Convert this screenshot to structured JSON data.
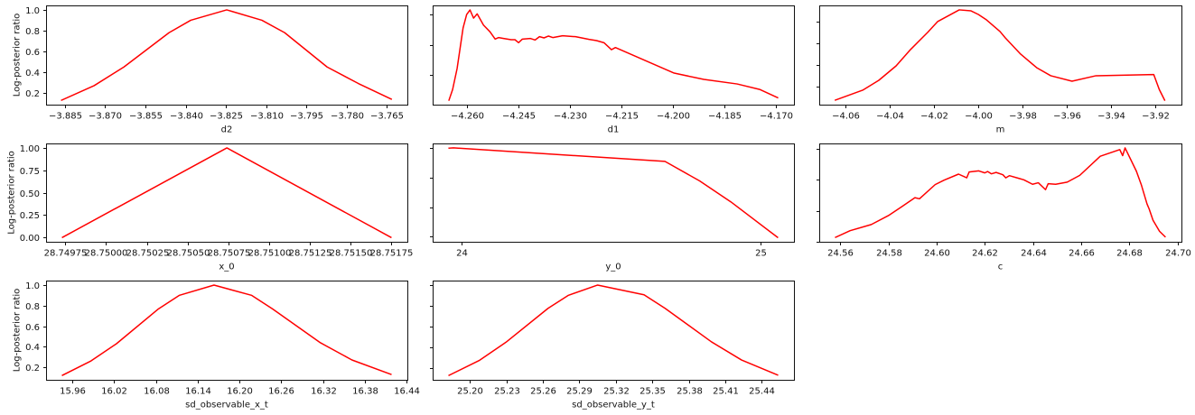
{
  "figure": {
    "grid": {
      "rows": 3,
      "cols": 3
    },
    "empty_cells": [
      {
        "row": 2,
        "col": 2
      }
    ],
    "background": "#ffffff",
    "line_color": "#ff0000"
  },
  "chart_data": [
    {
      "id": "d2",
      "row": 0,
      "col": 0,
      "type": "line",
      "title": "",
      "xlabel": "d2",
      "ylabel": "Log-posterior ratio",
      "color": "#ff0000",
      "x": [
        -3.8862,
        -3.8741,
        -3.863,
        -3.8462,
        -3.8381,
        -3.8247,
        -3.8116,
        -3.8031,
        -3.7873,
        -3.7756,
        -3.7634
      ],
      "y": [
        0.13,
        0.27,
        0.45,
        0.78,
        0.9,
        1.0,
        0.9,
        0.78,
        0.45,
        0.29,
        0.14
      ],
      "xlim": [
        -3.892,
        -3.7574
      ],
      "ylim": [
        0.087,
        1.043
      ],
      "xticks": [
        -3.885,
        -3.87,
        -3.855,
        -3.84,
        -3.825,
        -3.81,
        -3.795,
        -3.78,
        -3.765
      ],
      "xtick_labels": [
        "−3.885",
        "−3.870",
        "−3.855",
        "−3.840",
        "−3.825",
        "−3.810",
        "−3.795",
        "−3.780",
        "−3.765"
      ],
      "yticks": [
        0.2,
        0.4,
        0.6,
        0.8,
        1.0
      ],
      "ytick_labels": [
        "0.2",
        "0.4",
        "0.6",
        "0.8",
        "1.0"
      ],
      "ytick_labels_visible": true,
      "grid": false
    },
    {
      "id": "d1",
      "row": 0,
      "col": 1,
      "type": "line",
      "title": "",
      "xlabel": "d1",
      "ylabel": "",
      "color": "#ff0000",
      "x": [
        -4.26533,
        -4.26428,
        -4.26297,
        -4.26123,
        -4.26018,
        -4.25921,
        -4.25816,
        -4.25711,
        -4.25528,
        -4.25336,
        -4.25187,
        -4.25089,
        -4.24943,
        -4.24722,
        -4.24609,
        -4.24504,
        -4.24392,
        -4.24155,
        -4.24024,
        -4.23893,
        -4.23762,
        -4.23631,
        -4.23499,
        -4.23219,
        -4.22843,
        -4.2245,
        -4.22229,
        -4.22012,
        -4.21794,
        -4.21678,
        -4.19965,
        -4.19099,
        -4.18128,
        -4.17472,
        -4.16947
      ],
      "y": [
        0.233,
        0.303,
        0.442,
        0.71,
        0.8,
        0.83,
        0.776,
        0.804,
        0.73,
        0.685,
        0.637,
        0.647,
        0.641,
        0.633,
        0.633,
        0.613,
        0.637,
        0.641,
        0.631,
        0.653,
        0.645,
        0.657,
        0.647,
        0.659,
        0.653,
        0.635,
        0.627,
        0.613,
        0.567,
        0.581,
        0.412,
        0.37,
        0.34,
        0.304,
        0.249
      ],
      "xlim": [
        -4.2701,
        -4.1647
      ],
      "ylim": [
        0.203,
        0.86
      ],
      "xticks": [
        -4.26,
        -4.245,
        -4.23,
        -4.215,
        -4.2,
        -4.185,
        -4.17
      ],
      "xtick_labels": [
        "−4.260",
        "−4.245",
        "−4.230",
        "−4.215",
        "−4.200",
        "−4.185",
        "−4.170"
      ],
      "yticks": [
        0.4,
        0.6,
        0.8
      ],
      "ytick_labels": [],
      "ytick_labels_visible": false,
      "grid": false
    },
    {
      "id": "m",
      "row": 0,
      "col": 2,
      "type": "line",
      "title": "",
      "xlabel": "m",
      "ylabel": "",
      "color": "#ff0000",
      "x": [
        -4.0644,
        -4.0521,
        -4.0448,
        -4.037,
        -4.0305,
        -4.0228,
        -4.0183,
        -4.0085,
        -4.0032,
        -3.9999,
        -3.9962,
        -3.9901,
        -3.9877,
        -3.9808,
        -3.9734,
        -3.9672,
        -3.9576,
        -3.9468,
        -3.9207,
        -3.9182,
        -3.9158
      ],
      "y": [
        0.079,
        0.17,
        0.261,
        0.394,
        0.544,
        0.701,
        0.801,
        0.909,
        0.9,
        0.867,
        0.817,
        0.71,
        0.651,
        0.502,
        0.375,
        0.303,
        0.253,
        0.303,
        0.314,
        0.176,
        0.079
      ],
      "xlim": [
        -4.0717,
        -3.9082
      ],
      "ylim": [
        0.037,
        0.95
      ],
      "xticks": [
        -4.06,
        -4.04,
        -4.02,
        -4.0,
        -3.98,
        -3.96,
        -3.94,
        -3.92
      ],
      "xtick_labels": [
        "−4.06",
        "−4.04",
        "−4.02",
        "−4.00",
        "−3.98",
        "−3.96",
        "−3.94",
        "−3.92"
      ],
      "yticks": [
        0.2,
        0.4,
        0.6,
        0.8
      ],
      "ytick_labels": [],
      "ytick_labels_visible": false,
      "grid": false
    },
    {
      "id": "x_0",
      "row": 1,
      "col": 0,
      "type": "line",
      "title": "",
      "xlabel": "x_0",
      "ylabel": "Log-posterior ratio",
      "color": "#ff0000",
      "x": [
        28.749733,
        28.750741,
        28.751747
      ],
      "y": [
        0.0,
        1.0,
        0.0
      ],
      "xlim": [
        28.749632,
        28.751848
      ],
      "ylim": [
        -0.05,
        1.05
      ],
      "xticks": [
        28.74975,
        28.75,
        28.75025,
        28.7505,
        28.75075,
        28.751,
        28.75125,
        28.7515,
        28.75175
      ],
      "xtick_labels": [
        "28.74975",
        "28.75000",
        "28.75025",
        "28.75050",
        "28.75075",
        "28.75100",
        "28.75125",
        "28.75150",
        "28.75175"
      ],
      "yticks": [
        0.0,
        0.25,
        0.5,
        0.75,
        1.0
      ],
      "ytick_labels": [
        "0.00",
        "0.25",
        "0.50",
        "0.75",
        "1.00"
      ],
      "ytick_labels_visible": true,
      "grid": false
    },
    {
      "id": "y_0",
      "row": 1,
      "col": 1,
      "type": "line",
      "title": "",
      "xlabel": "y_0",
      "ylabel": "",
      "color": "#ff0000",
      "x": [
        23.957,
        23.972,
        24.68,
        24.796,
        24.901,
        25.057
      ],
      "y": [
        0.998,
        1.0,
        0.909,
        0.777,
        0.635,
        0.396
      ],
      "xlim": [
        23.902,
        25.112
      ],
      "ylim": [
        0.366,
        1.03
      ],
      "xticks": [
        24,
        25
      ],
      "xtick_labels": [
        "24",
        "25"
      ],
      "yticks": [
        0.4,
        0.6,
        0.8,
        1.0
      ],
      "ytick_labels": [],
      "ytick_labels_visible": false,
      "grid": false
    },
    {
      "id": "c",
      "row": 1,
      "col": 2,
      "type": "line",
      "title": "",
      "xlabel": "c",
      "ylabel": "",
      "color": "#ff0000",
      "x": [
        24.5581,
        24.5641,
        24.5729,
        24.58,
        24.5856,
        24.591,
        24.5929,
        24.5994,
        24.6031,
        24.6091,
        24.6125,
        24.6135,
        24.6175,
        24.62,
        24.6212,
        24.6227,
        24.6247,
        24.6275,
        24.6287,
        24.6302,
        24.634,
        24.6362,
        24.6398,
        24.6422,
        24.6452,
        24.6463,
        24.6494,
        24.6542,
        24.6594,
        24.6679,
        24.676,
        24.6772,
        24.6782,
        24.6829,
        24.685,
        24.6873,
        24.6882,
        24.6898,
        24.6925,
        24.6948
      ],
      "y": [
        0.428,
        0.471,
        0.511,
        0.569,
        0.627,
        0.685,
        0.678,
        0.77,
        0.799,
        0.838,
        0.814,
        0.852,
        0.859,
        0.846,
        0.855,
        0.84,
        0.849,
        0.834,
        0.814,
        0.828,
        0.811,
        0.801,
        0.772,
        0.782,
        0.737,
        0.776,
        0.772,
        0.786,
        0.83,
        0.954,
        0.997,
        0.958,
        1.008,
        0.857,
        0.766,
        0.645,
        0.612,
        0.539,
        0.467,
        0.432
      ],
      "xlim": [
        24.5513,
        24.7016
      ],
      "ylim": [
        0.399,
        1.037
      ],
      "xticks": [
        24.56,
        24.58,
        24.6,
        24.62,
        24.64,
        24.66,
        24.68,
        24.7
      ],
      "xtick_labels": [
        "24.56",
        "24.58",
        "24.60",
        "24.62",
        "24.64",
        "24.66",
        "24.68",
        "24.70"
      ],
      "yticks": [
        0.4,
        0.6,
        0.8,
        1.0
      ],
      "ytick_labels": [],
      "ytick_labels_visible": false,
      "grid": false
    },
    {
      "id": "sd_observable_x_t",
      "row": 2,
      "col": 0,
      "type": "line",
      "title": "",
      "xlabel": "sd_observable_x_t",
      "ylabel": "Log-posterior ratio",
      "color": "#ff0000",
      "x": [
        15.9458,
        15.9868,
        16.0233,
        16.0837,
        16.1138,
        16.1634,
        16.2172,
        16.2474,
        16.3163,
        16.3615,
        16.4175
      ],
      "y": [
        0.123,
        0.263,
        0.43,
        0.769,
        0.901,
        1.0,
        0.901,
        0.769,
        0.439,
        0.272,
        0.132
      ],
      "xlim": [
        15.9222,
        16.4411
      ],
      "ylim": [
        0.079,
        1.044
      ],
      "xticks": [
        15.96,
        16.02,
        16.08,
        16.14,
        16.2,
        16.26,
        16.32,
        16.38,
        16.44
      ],
      "xtick_labels": [
        "15.96",
        "16.02",
        "16.08",
        "16.14",
        "16.20",
        "16.26",
        "16.32",
        "16.38",
        "16.44"
      ],
      "yticks": [
        0.2,
        0.4,
        0.6,
        0.8,
        1.0
      ],
      "ytick_labels": [
        "0.2",
        "0.4",
        "0.6",
        "0.8",
        "1.0"
      ],
      "ytick_labels_visible": true,
      "grid": false
    },
    {
      "id": "sd_observable_y_t",
      "row": 2,
      "col": 1,
      "type": "line",
      "title": "",
      "xlabel": "sd_observable_y_t",
      "ylabel": "",
      "color": "#ff0000",
      "x": [
        25.1827,
        25.2079,
        25.2296,
        25.2642,
        25.281,
        25.305,
        25.3432,
        25.3605,
        25.3987,
        25.4235,
        25.4531
      ],
      "y": [
        0.134,
        0.279,
        0.452,
        0.777,
        0.902,
        1.0,
        0.907,
        0.777,
        0.455,
        0.281,
        0.137
      ],
      "xlim": [
        25.1692,
        25.4666
      ],
      "ylim": [
        0.091,
        1.043
      ],
      "xticks": [
        25.2,
        25.23,
        25.26,
        25.29,
        25.32,
        25.35,
        25.38,
        25.41,
        25.44
      ],
      "xtick_labels": [
        "25.20",
        "25.23",
        "25.26",
        "25.29",
        "25.32",
        "25.35",
        "25.38",
        "25.41",
        "25.44"
      ],
      "yticks": [
        0.2,
        0.4,
        0.6,
        0.8,
        1.0
      ],
      "ytick_labels": [],
      "ytick_labels_visible": false,
      "grid": false
    }
  ]
}
